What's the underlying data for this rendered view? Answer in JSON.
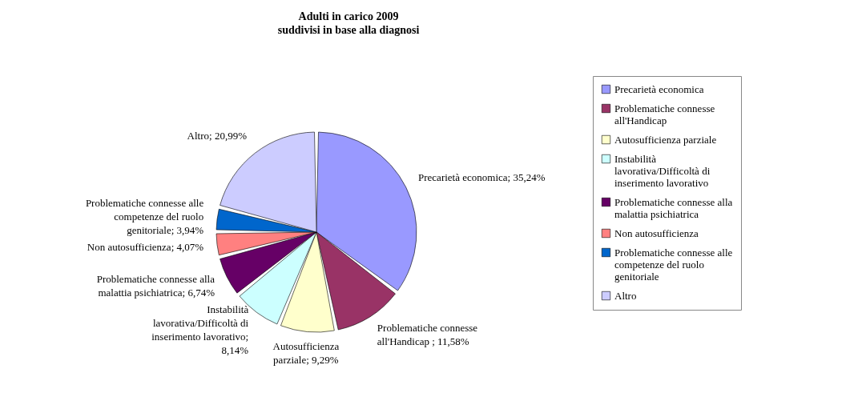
{
  "chart_data": {
    "type": "pie",
    "title": "Adulti in carico 2009",
    "subtitle": "suddivisi in base alla diagnosi",
    "categories": [
      "Precarietà economica",
      "Problematiche connesse all'Handicap",
      "Autosufficienza parziale",
      "Instabilità lavorativa/Difficoltà di inserimento lavorativo",
      "Problematiche connesse alla malattia psichiatrica",
      "Non autosufficienza",
      "Problematiche connesse alle competenze del ruolo genitoriale",
      "Altro"
    ],
    "values": [
      35.24,
      11.58,
      9.29,
      8.14,
      6.74,
      4.07,
      3.94,
      20.99
    ],
    "value_labels": [
      "Precarietà economica; 35,24%",
      "Problematiche connesse all'Handicap ; 11,58%",
      "Autosufficienza parziale; 9,29%",
      "Instabilità lavorativa/Difficoltà di inserimento lavorativo; 8,14%",
      "Problematiche connesse alla malattia psichiatrica; 6,74%",
      "Non autosufficienza; 4,07%",
      "Problematiche connesse alle competenze del ruolo genitoriale; 3,94%",
      "Altro; 20,99%"
    ],
    "colors": [
      "#9999ff",
      "#993366",
      "#ffffcc",
      "#ccffff",
      "#660066",
      "#ff8080",
      "#0066cc",
      "#ccccff"
    ],
    "legend": "right"
  }
}
